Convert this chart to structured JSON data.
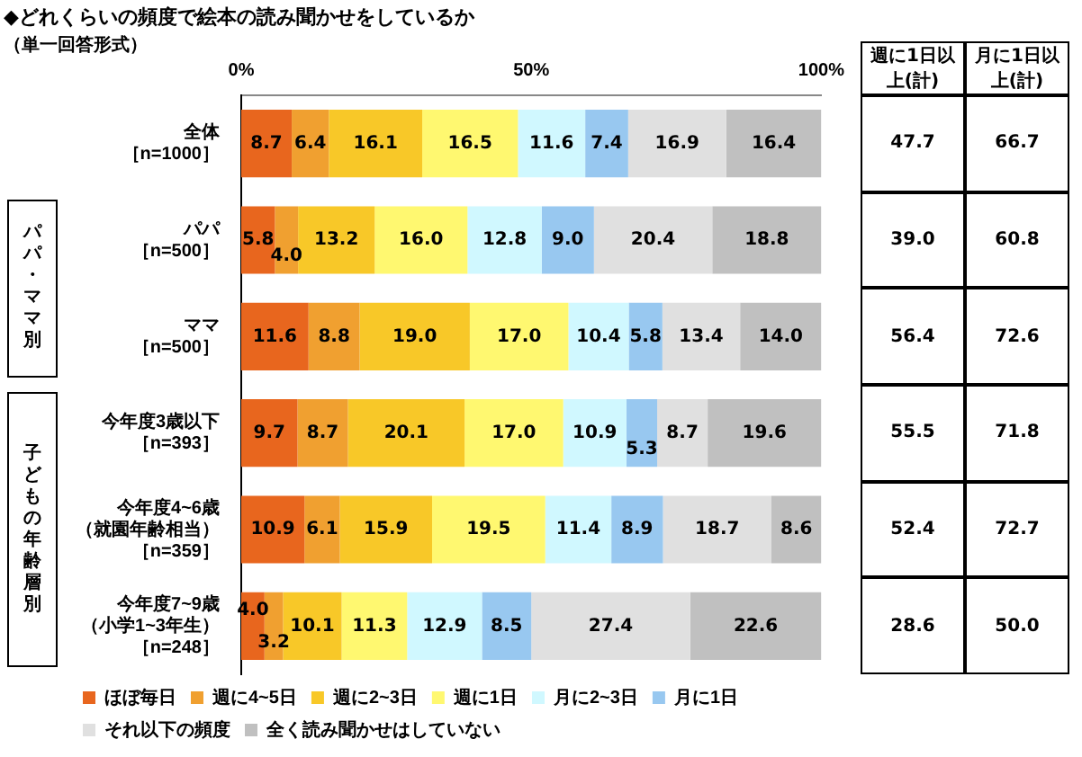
{
  "chart_data": {
    "type": "bar",
    "orientation": "horizontal",
    "stacked": true,
    "title": "◆どれくらいの頻度で絵本の読み聞かせをしているか",
    "subtitle": "（単一回答形式）",
    "categories": [
      "全体［n=1000］",
      "パパ［n=500］",
      "ママ［n=500］",
      "今年度3歳以下［n=393］",
      "今年度4~6歳（就園年齢相当）［n=359］",
      "今年度7~9歳（小学1~3年生）［n=248］"
    ],
    "series": [
      {
        "name": "ほぼ毎日",
        "color": "#e8661e",
        "values": [
          8.7,
          5.8,
          11.6,
          9.7,
          10.9,
          4.0
        ],
        "value_labels": [
          "8.7",
          "5.8",
          "11.6",
          "9.7",
          "10.9",
          "4.0"
        ]
      },
      {
        "name": "週に4~5日",
        "color": "#f0a030",
        "values": [
          6.4,
          4.0,
          8.8,
          8.7,
          6.1,
          3.2
        ],
        "value_labels": [
          "6.4",
          "4.0",
          "8.8",
          "8.7",
          "6.1",
          "3.2"
        ]
      },
      {
        "name": "週に2~3日",
        "color": "#f8c828",
        "values": [
          16.1,
          13.2,
          19.0,
          20.1,
          15.9,
          10.1
        ],
        "value_labels": [
          "16.1",
          "13.2",
          "19.0",
          "20.1",
          "15.9",
          "10.1"
        ]
      },
      {
        "name": "週に1日",
        "color": "#fff870",
        "values": [
          16.5,
          16.0,
          17.0,
          17.0,
          19.5,
          11.3
        ],
        "value_labels": [
          "16.5",
          "16.0",
          "17.0",
          "17.0",
          "19.5",
          "11.3"
        ]
      },
      {
        "name": "月に2~3日",
        "color": "#d0f8ff",
        "values": [
          11.6,
          12.8,
          10.4,
          10.9,
          11.4,
          12.9
        ],
        "value_labels": [
          "11.6",
          "12.8",
          "10.4",
          "10.9",
          "11.4",
          "12.9"
        ]
      },
      {
        "name": "月に1日",
        "color": "#98c8f0",
        "values": [
          7.4,
          9.0,
          5.8,
          5.3,
          8.9,
          8.5
        ],
        "value_labels": [
          "7.4",
          "9.0",
          "5.8",
          "5.3",
          "8.9",
          "8.5"
        ]
      },
      {
        "name": "それ以下の頻度",
        "color": "#e0e0e0",
        "values": [
          16.9,
          20.4,
          13.4,
          8.7,
          18.7,
          27.4
        ],
        "value_labels": [
          "16.9",
          "20.4",
          "13.4",
          "8.7",
          "18.7",
          "27.4"
        ]
      },
      {
        "name": "全く読み聞かせはしていない",
        "color": "#c0c0c0",
        "values": [
          16.4,
          18.8,
          14.0,
          19.6,
          8.6,
          22.6
        ],
        "value_labels": [
          "16.4",
          "18.8",
          "14.0",
          "19.6",
          "8.6",
          "22.6"
        ]
      }
    ],
    "xlim": [
      0,
      100
    ],
    "xticks": [
      {
        "value": 0,
        "label": "0%"
      },
      {
        "value": 50,
        "label": "50%"
      },
      {
        "value": 100,
        "label": "100%"
      }
    ],
    "grid": false,
    "legend": "bottom",
    "annotations": [
      "パパ・ママ別",
      "子どもの年齢層別",
      "週に1日以上(計)",
      "月に1日以上(計)",
      "47.7",
      "66.7",
      "39.0",
      "60.8",
      "56.4",
      "72.6",
      "55.5",
      "71.8",
      "52.4",
      "72.7",
      "28.6",
      "50.0"
    ]
  }
}
